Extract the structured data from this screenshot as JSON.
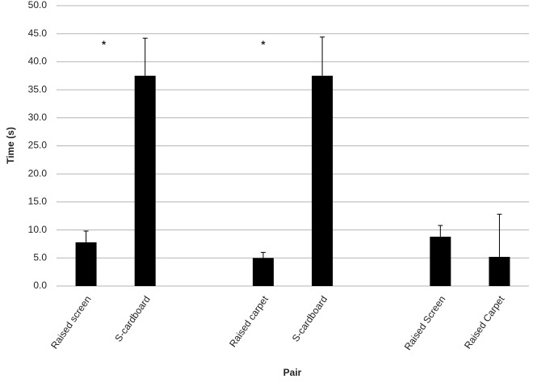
{
  "chart_data": {
    "type": "bar",
    "categories": [
      "Raised screen",
      "S-cardboard",
      null,
      "Raised carpet",
      "S-cardboard",
      null,
      "Raised Screen",
      "Raised Carpet"
    ],
    "values": [
      7.8,
      37.5,
      null,
      5.0,
      37.5,
      null,
      8.8,
      5.2
    ],
    "errors": [
      2.0,
      6.7,
      null,
      1.0,
      6.9,
      null,
      2.0,
      7.6
    ],
    "color": "#000000",
    "xlabel": "Pair",
    "ylabel": "Time (s)",
    "annotations": [
      "*",
      "*"
    ],
    "ylim": [
      0,
      50
    ],
    "yticks": [
      {
        "value": 0,
        "label": "0.0"
      },
      {
        "value": 5,
        "label": "5.0"
      },
      {
        "value": 10,
        "label": "10.0"
      },
      {
        "value": 15,
        "label": "15.0"
      },
      {
        "value": 20,
        "label": "20.0"
      },
      {
        "value": 25,
        "label": "25.0"
      },
      {
        "value": 30,
        "label": "30.0"
      },
      {
        "value": 35,
        "label": "35.0"
      },
      {
        "value": 40,
        "label": "40.0"
      },
      {
        "value": 45,
        "label": "45.0"
      },
      {
        "value": 50,
        "label": "50.0"
      }
    ],
    "grid": true
  }
}
